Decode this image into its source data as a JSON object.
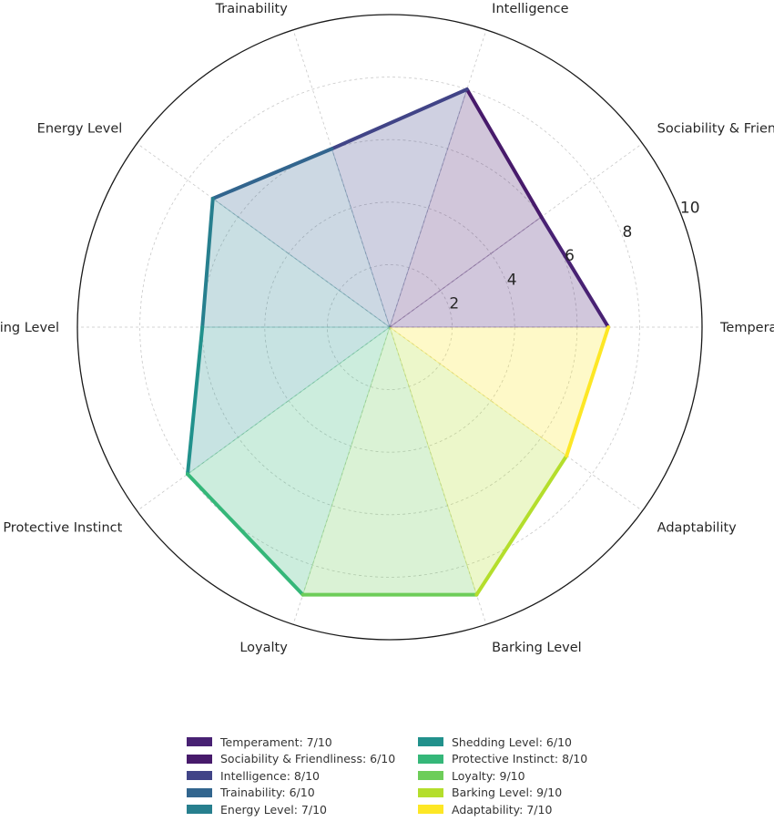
{
  "chart_data": {
    "type": "radar",
    "title": "",
    "rmax": 10,
    "radial_ticks": [
      2,
      4,
      6,
      8,
      10
    ],
    "grid": true,
    "legend_placement": "bottom-center",
    "categories": [
      "Temperament",
      "Sociability & Friendliness",
      "Intelligence",
      "Trainability",
      "Energy Level",
      "Shedding Level",
      "Protective Instinct",
      "Loyalty",
      "Barking Level",
      "Adaptability"
    ],
    "values": [
      7,
      6,
      8,
      6,
      7,
      6,
      8,
      9,
      9,
      7
    ],
    "colors": [
      "#482173",
      "#471A6B",
      "#414487",
      "#32658E",
      "#277F8E",
      "#21918C",
      "#35B779",
      "#6DCD59",
      "#B4DE2C",
      "#FDE725"
    ],
    "legend": [
      "Temperament: 7/10",
      "Sociability & Friendliness: 6/10",
      "Intelligence: 8/10",
      "Trainability: 6/10",
      "Energy Level: 7/10",
      "Shedding Level: 6/10",
      "Protective Instinct: 8/10",
      "Loyalty: 9/10",
      "Barking Level: 9/10",
      "Adaptability: 7/10"
    ]
  }
}
